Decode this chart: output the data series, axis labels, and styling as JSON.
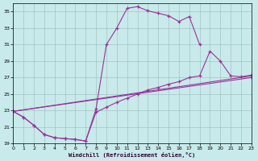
{
  "background_color": "#c8eaea",
  "grid_color": "#99bbbb",
  "line_color": "#993399",
  "xlabel": "Windchill (Refroidissement éolien,°C)",
  "xlim": [
    0,
    23
  ],
  "ylim": [
    19,
    36
  ],
  "yticks": [
    19,
    21,
    23,
    25,
    27,
    29,
    31,
    33,
    35
  ],
  "xticks": [
    0,
    1,
    2,
    3,
    4,
    5,
    6,
    7,
    8,
    9,
    10,
    11,
    12,
    13,
    14,
    15,
    16,
    17,
    18,
    19,
    20,
    21,
    22,
    23
  ],
  "curve_top": {
    "x": [
      0,
      1,
      2,
      3,
      4,
      5,
      6,
      7,
      8,
      9,
      10,
      11,
      12,
      13,
      14,
      15,
      16,
      17,
      18
    ],
    "y": [
      22.9,
      22.2,
      21.2,
      20.1,
      19.7,
      19.6,
      19.5,
      19.3,
      23.2,
      31.0,
      33.0,
      35.4,
      35.6,
      35.1,
      34.8,
      34.5,
      33.8,
      34.4,
      31.0
    ]
  },
  "curve_mid": {
    "x": [
      0,
      1,
      2,
      3,
      4,
      5,
      6,
      7,
      8,
      9,
      10,
      11,
      12,
      13,
      14,
      15,
      16,
      17,
      18,
      19,
      20,
      21,
      22,
      23
    ],
    "y": [
      22.9,
      22.2,
      21.2,
      20.1,
      19.7,
      19.6,
      19.5,
      19.3,
      22.8,
      23.4,
      24.0,
      24.5,
      25.0,
      25.5,
      25.8,
      26.2,
      26.5,
      27.0,
      27.2,
      30.2,
      29.0,
      27.2,
      27.1,
      27.3
    ]
  },
  "curve_low1": {
    "x": [
      0,
      23
    ],
    "y": [
      22.9,
      27.0
    ]
  },
  "curve_low2": {
    "x": [
      0,
      23
    ],
    "y": [
      22.9,
      27.2
    ]
  }
}
